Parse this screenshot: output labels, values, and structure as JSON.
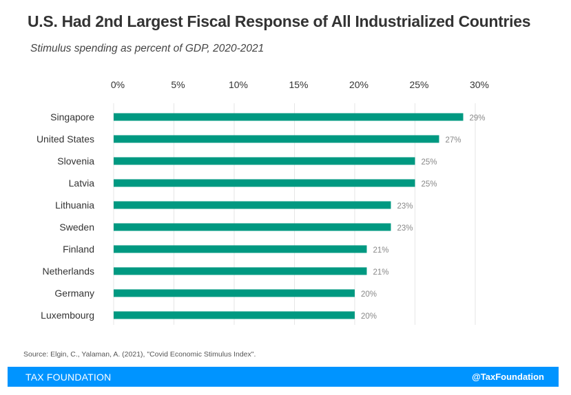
{
  "header": {
    "title": "U.S. Had 2nd Largest Fiscal Response of All Industrialized Countries",
    "subtitle": "Stimulus spending as percent of GDP, 2020-2021"
  },
  "chart_data": {
    "type": "bar",
    "orientation": "horizontal",
    "categories": [
      "Singapore",
      "United States",
      "Slovenia",
      "Latvia",
      "Lithuania",
      "Sweden",
      "Finland",
      "Netherlands",
      "Germany",
      "Luxembourg"
    ],
    "values": [
      29,
      27,
      25,
      25,
      23,
      23,
      21,
      21,
      20,
      20
    ],
    "data_labels": [
      "29%",
      "27%",
      "25%",
      "25%",
      "23%",
      "23%",
      "21%",
      "21%",
      "20%",
      "20%"
    ],
    "x_ticks": [
      0,
      5,
      10,
      15,
      20,
      25,
      30
    ],
    "x_tick_labels": [
      "0%",
      "5%",
      "10%",
      "15%",
      "20%",
      "25%",
      "30%"
    ],
    "xlim": [
      0,
      30
    ],
    "axis_position": "top",
    "grid": true,
    "bar_color": "#009981",
    "grid_color": "#e6e6e6",
    "label_color": "#888888"
  },
  "source": "Source: Elgin, C., Yalaman, A. (2021), \"Covid Economic Stimulus Index\".",
  "footer": {
    "brand": "TAX FOUNDATION",
    "handle": "@TaxFoundation",
    "color": "#0094ff"
  }
}
